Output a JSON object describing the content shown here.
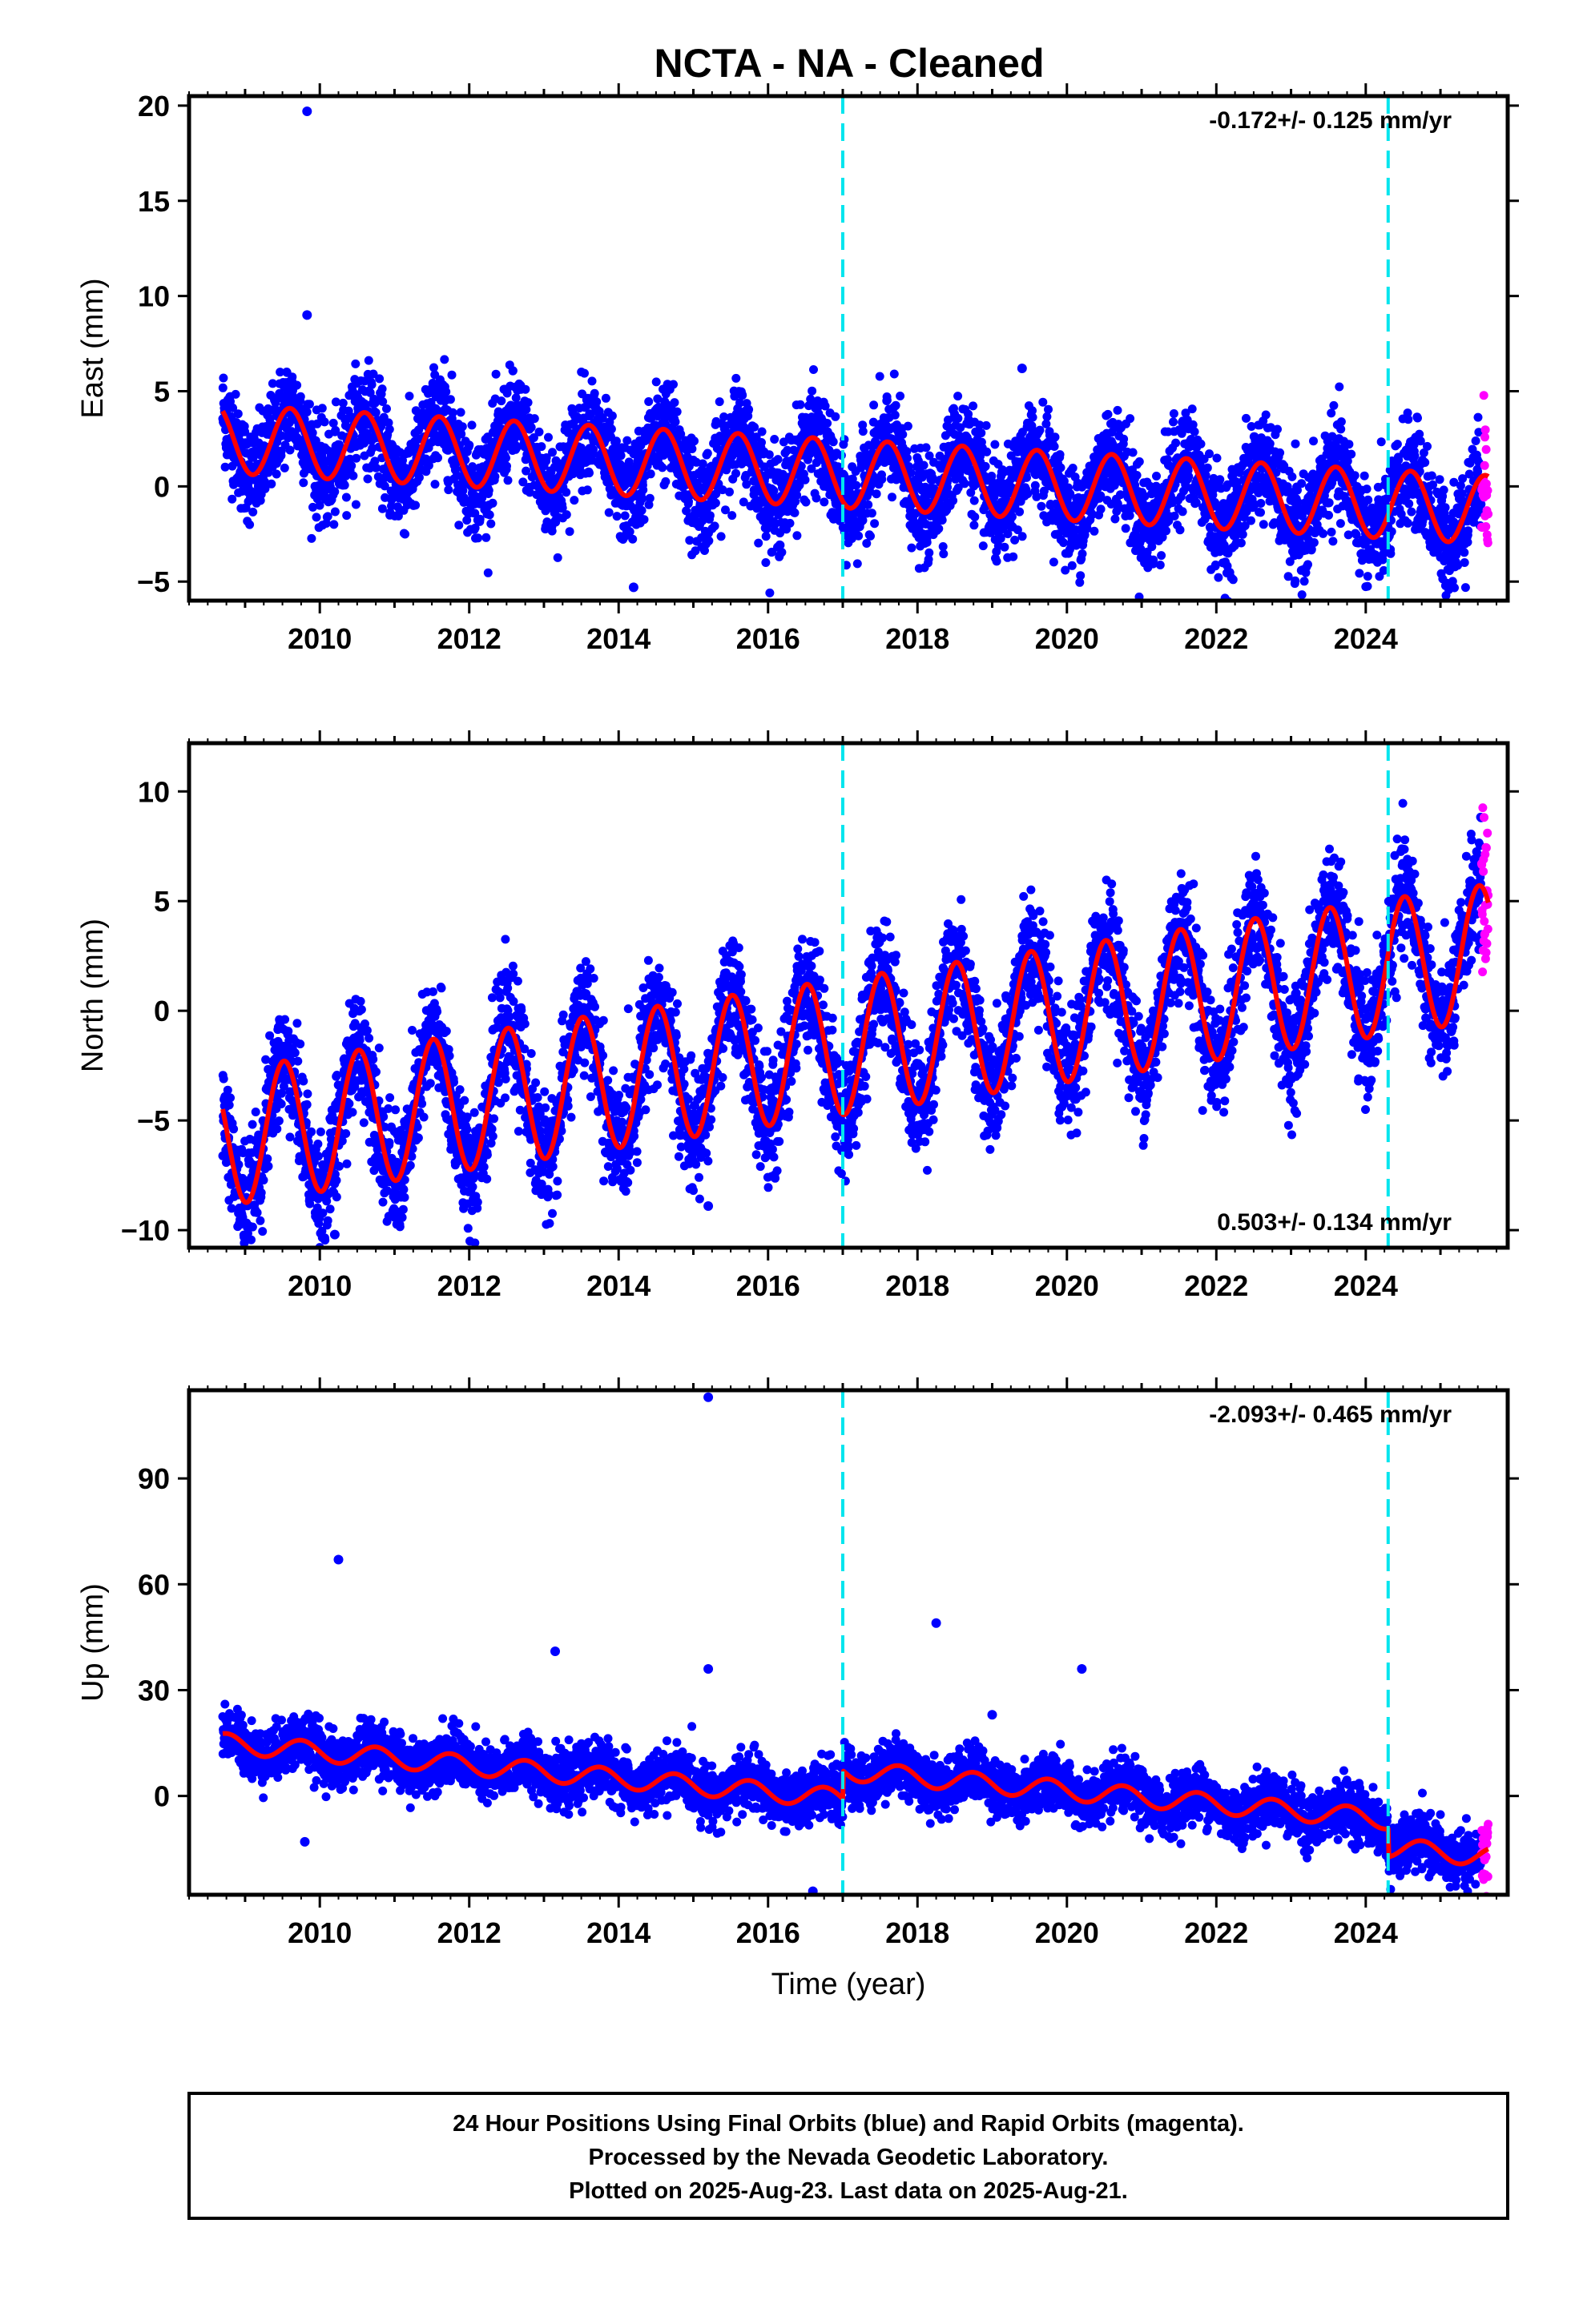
{
  "chart_data": {
    "type": "scatter",
    "title": "NCTA  - NA - Cleaned",
    "xlabel": "Time (year)",
    "x_ticks": [
      "2010",
      "2012",
      "2014",
      "2016",
      "2018",
      "2020",
      "2022",
      "2024"
    ],
    "xlim": [
      2008.25,
      2025.9
    ],
    "events": [
      2017.0,
      2024.3
    ],
    "colors": {
      "final_orbits": "#0000ff",
      "rapid_orbits": "#ff00ff",
      "model": "#ff0000",
      "event": "#00e5ee",
      "frame": "#000000"
    },
    "panels": [
      {
        "ylabel": "East (mm)",
        "ylim": [
          -6,
          20.5
        ],
        "y_ticks": [
          "−5",
          "0",
          "5",
          "10",
          "15",
          "20"
        ],
        "y_values": [
          -5,
          0,
          5,
          10,
          15,
          20
        ],
        "rate": "-0.172+/- 0.125 mm/yr",
        "rate_position": "top-right",
        "start_value": 2.5,
        "trend": -0.22,
        "amplitude": 1.8,
        "peak_phase": 0.6,
        "scatter": 1.3,
        "offset_at_event": 0,
        "outliers": [
          [
            2009.83,
            19.7
          ],
          [
            2009.83,
            9.0
          ],
          [
            2019.4,
            6.2
          ],
          [
            2014.2,
            -5.3
          ]
        ]
      },
      {
        "ylabel": "North (mm)",
        "ylim": [
          -10.8,
          12.2
        ],
        "y_ticks": [
          "−10",
          "−5",
          "0",
          "5",
          "10"
        ],
        "y_values": [
          -10,
          -5,
          0,
          5,
          10
        ],
        "rate": "0.503+/- 0.134 mm/yr",
        "rate_position": "bottom-right",
        "start_value": -5.8,
        "trend": 0.5,
        "amplitude": 3.1,
        "peak_phase": 0.52,
        "scatter": 1.3,
        "offset_at_event": 0,
        "outliers": [
          [
            2015.2,
            -8.9
          ],
          [
            2010.2,
            -10.2
          ],
          [
            2011.0,
            -9.4
          ]
        ]
      },
      {
        "ylabel": "Up (mm)",
        "ylim": [
          -28,
          115
        ],
        "y_ticks": [
          "0",
          "30",
          "60",
          "90"
        ],
        "y_values": [
          0,
          30,
          60,
          90
        ],
        "rate": "-2.093+/- 0.465 mm/yr",
        "rate_position": "top-right",
        "start_value": 15,
        "trend": -1.9,
        "amplitude": 2.8,
        "peak_phase": 0.75,
        "scatter": 3.8,
        "offset_at_event": 8,
        "outliers": [
          [
            2015.2,
            113
          ],
          [
            2010.25,
            67
          ],
          [
            2013.15,
            41
          ],
          [
            2015.2,
            36
          ],
          [
            2018.25,
            49
          ],
          [
            2020.2,
            36
          ],
          [
            2019.0,
            23
          ],
          [
            2009.8,
            -13
          ],
          [
            2016.6,
            -27
          ]
        ]
      }
    ],
    "footer": [
      "24 Hour Positions Using Final Orbits (blue) and Rapid Orbits (magenta).",
      "Processed by the Nevada Geodetic Laboratory.",
      "Plotted on 2025-Aug-23. Last data on 2025-Aug-21."
    ]
  }
}
